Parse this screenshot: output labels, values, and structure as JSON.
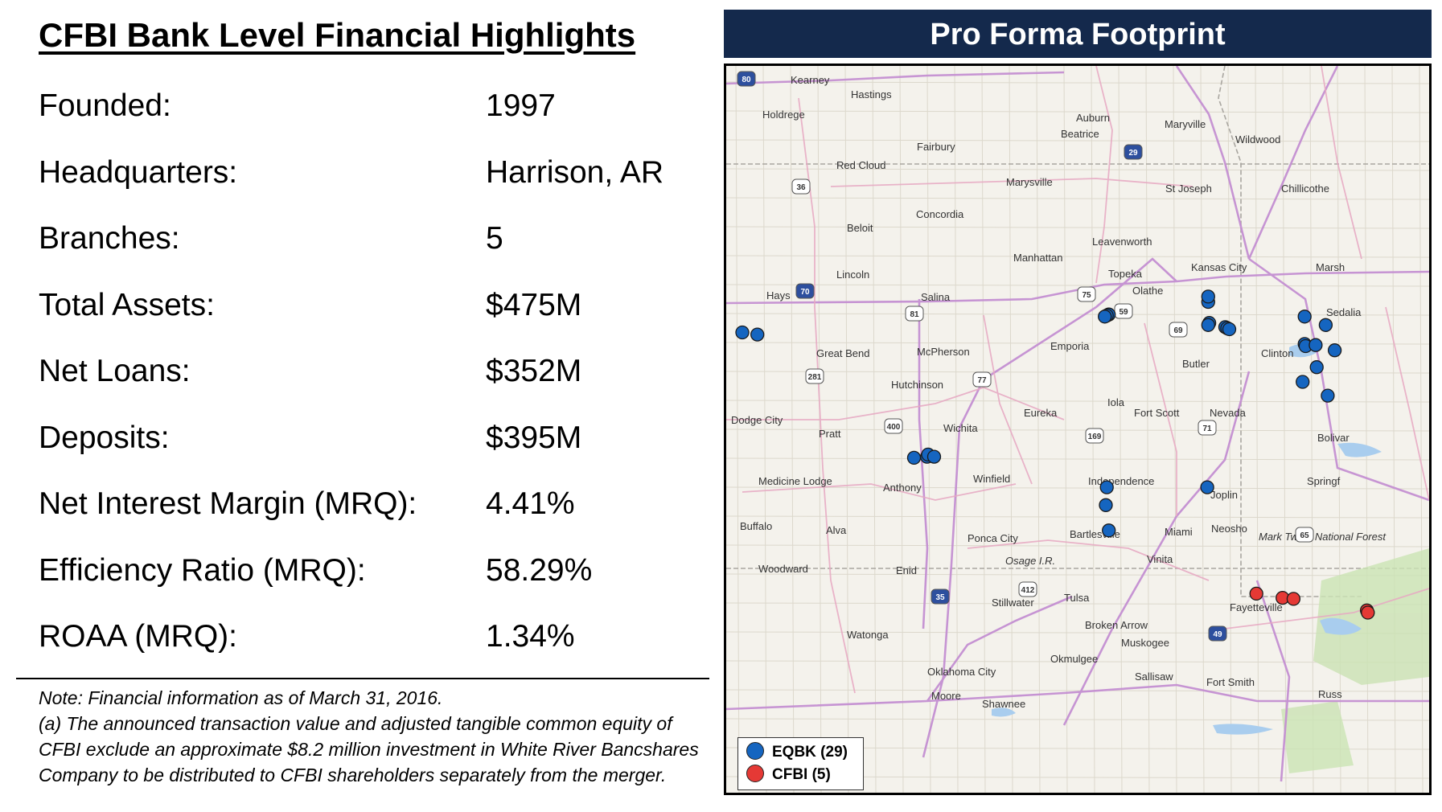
{
  "highlights": {
    "title": "CFBI Bank Level Financial Highlights",
    "rows": [
      {
        "label": "Founded:",
        "value": "1997"
      },
      {
        "label": "Headquarters:",
        "value": "Harrison, AR"
      },
      {
        "label": "Branches:",
        "value": "5"
      },
      {
        "label": "Total Assets:",
        "value": "$475M"
      },
      {
        "label": "Net Loans:",
        "value": "$352M"
      },
      {
        "label": "Deposits:",
        "value": "$395M"
      },
      {
        "label": "Net Interest Margin (MRQ):",
        "value": "4.41%"
      },
      {
        "label": "Efficiency Ratio (MRQ):",
        "value": "58.29%"
      },
      {
        "label": "ROAA (MRQ):",
        "value": "1.34%"
      }
    ]
  },
  "note": {
    "line1": "Note: Financial information as of March 31, 2016.",
    "line2": "(a) The announced transaction value and adjusted tangible common equity of CFBI exclude an approximate $8.2 million investment in White River Bancshares Company to be distributed to CFBI shareholders separately from the merger."
  },
  "map": {
    "title": "Pro Forma Footprint",
    "legend": [
      {
        "label": "EQBK (29)",
        "color": "#1565c0"
      },
      {
        "label": "CFBI (5)",
        "color": "#e53935"
      }
    ],
    "cities": [
      "Kearney",
      "Hastings",
      "Holdrege",
      "Auburn",
      "Maryville",
      "Wildwood",
      "Beatrice",
      "Fairbury",
      "Red Cloud",
      "Marysville",
      "St Joseph",
      "Chillicothe",
      "Concordia",
      "Beloit",
      "Leavenworth",
      "Manhattan",
      "Kansas City",
      "Lincoln",
      "Topeka",
      "Olathe",
      "Salina",
      "Emporia",
      "Great Bend",
      "McPherson",
      "Butler",
      "Clinton",
      "Hutchinson",
      "Iola",
      "Fort Scott",
      "Nevada",
      "Eureka",
      "Pratt",
      "Wichita",
      "Bolivar",
      "Independence",
      "Winfield",
      "Medicine Lodge",
      "Anthony",
      "Joplin",
      "Buffalo",
      "Alva",
      "Ponca City",
      "Bartlesville",
      "Miami",
      "Neosho",
      "Woodward",
      "Enid",
      "Vinita",
      "Stillwater",
      "Tulsa",
      "Fayetteville",
      "Broken Arrow",
      "Muskogee",
      "Watonga",
      "Okmulgee",
      "Sallisaw",
      "Fort Smith",
      "Oklahoma City",
      "Moore",
      "Shawnee",
      "Sedalia",
      "Springf",
      "Marsh",
      "Russ",
      "Hays",
      "Dodge City",
      "Osage I.R.",
      "Mark Twain National Forest"
    ],
    "highways": [
      "80",
      "36",
      "70",
      "81",
      "75",
      "59",
      "69",
      "35",
      "29",
      "281",
      "77",
      "400",
      "169",
      "71",
      "49",
      "412",
      "65"
    ],
    "eqbk_locations": [
      {
        "lat": 38.88,
        "lon": -99.33
      },
      {
        "lat": 38.86,
        "lon": -99.18
      },
      {
        "lat": 39.05,
        "lon": -95.68
      },
      {
        "lat": 39.04,
        "lon": -95.7
      },
      {
        "lat": 39.03,
        "lon": -95.72
      },
      {
        "lat": 39.17,
        "lon": -94.69
      },
      {
        "lat": 38.97,
        "lon": -94.68
      },
      {
        "lat": 38.95,
        "lon": -94.69
      },
      {
        "lat": 38.93,
        "lon": -94.52
      },
      {
        "lat": 38.92,
        "lon": -94.5
      },
      {
        "lat": 38.91,
        "lon": -94.48
      },
      {
        "lat": 39.03,
        "lon": -93.73
      },
      {
        "lat": 38.95,
        "lon": -93.52
      },
      {
        "lat": 38.77,
        "lon": -93.73
      },
      {
        "lat": 38.75,
        "lon": -93.72
      },
      {
        "lat": 38.76,
        "lon": -93.62
      },
      {
        "lat": 38.71,
        "lon": -93.43
      },
      {
        "lat": 38.55,
        "lon": -93.61
      },
      {
        "lat": 38.41,
        "lon": -93.75
      },
      {
        "lat": 38.28,
        "lon": -93.5
      },
      {
        "lat": 37.69,
        "lon": -97.62
      },
      {
        "lat": 37.7,
        "lon": -97.49
      },
      {
        "lat": 37.72,
        "lon": -97.48
      },
      {
        "lat": 37.7,
        "lon": -97.42
      },
      {
        "lat": 37.41,
        "lon": -95.7
      },
      {
        "lat": 37.24,
        "lon": -95.71
      },
      {
        "lat": 37.0,
        "lon": -95.68
      },
      {
        "lat": 37.41,
        "lon": -94.7
      },
      {
        "lat": 39.22,
        "lon": -94.69
      }
    ],
    "cfbi_locations": [
      {
        "lat": 36.4,
        "lon": -94.21
      },
      {
        "lat": 36.36,
        "lon": -93.95
      },
      {
        "lat": 36.35,
        "lon": -93.84
      },
      {
        "lat": 36.24,
        "lon": -93.11
      },
      {
        "lat": 36.22,
        "lon": -93.1
      }
    ]
  }
}
